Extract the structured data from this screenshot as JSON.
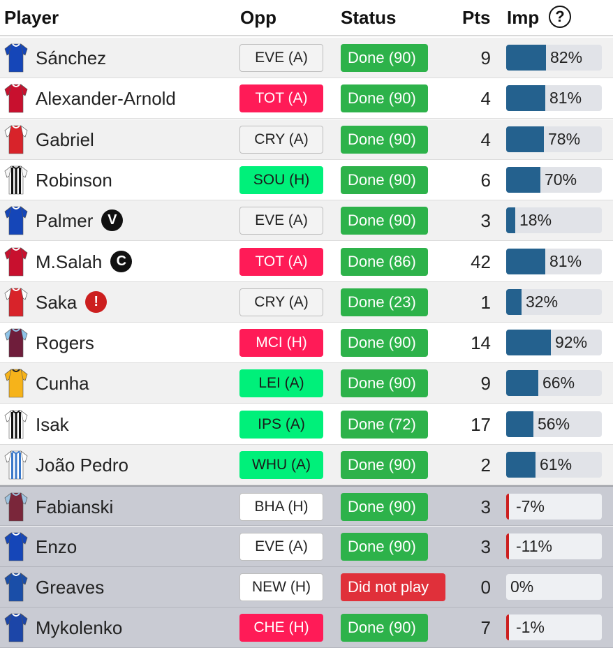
{
  "header": {
    "player": "Player",
    "opp": "Opp",
    "status": "Status",
    "pts": "Pts",
    "imp": "Imp",
    "help": "?"
  },
  "colors": {
    "done_green": "#2db24a",
    "did_not_play_red": "#e0303a",
    "fdr_easy": "#00f07a",
    "fdr_hard": "#ff1b57",
    "imp_bar": "#24618e",
    "imp_negative": "#cc1f1f"
  },
  "players": [
    {
      "name": "Sánchez",
      "shirt": "Chelsea",
      "badge": "",
      "opp": "EVE (A)",
      "difficulty": 2,
      "status": "Done (90)",
      "status_type": "done",
      "pts": "9",
      "imp": "82%",
      "imp_value": 82
    },
    {
      "name": "Alexander-Arnold",
      "shirt": "Liverpool",
      "badge": "",
      "opp": "TOT (A)",
      "difficulty": 4,
      "status": "Done (90)",
      "status_type": "done",
      "pts": "4",
      "imp": "81%",
      "imp_value": 81
    },
    {
      "name": "Gabriel",
      "shirt": "Arsenal",
      "badge": "",
      "opp": "CRY (A)",
      "difficulty": 2,
      "status": "Done (90)",
      "status_type": "done",
      "pts": "4",
      "imp": "78%",
      "imp_value": 78
    },
    {
      "name": "Robinson",
      "shirt": "Fulham",
      "badge": "",
      "opp": "SOU (H)",
      "difficulty": 3,
      "status": "Done (90)",
      "status_type": "done",
      "pts": "6",
      "imp": "70%",
      "imp_value": 70
    },
    {
      "name": "Palmer",
      "shirt": "Chelsea",
      "badge": "V",
      "opp": "EVE (A)",
      "difficulty": 2,
      "status": "Done (90)",
      "status_type": "done",
      "pts": "3",
      "imp": "18%",
      "imp_value": 18
    },
    {
      "name": "M.Salah",
      "shirt": "Liverpool",
      "badge": "C",
      "opp": "TOT (A)",
      "difficulty": 4,
      "status": "Done (86)",
      "status_type": "done",
      "pts": "42",
      "imp": "81%",
      "imp_value": 81
    },
    {
      "name": "Saka",
      "shirt": "Arsenal",
      "badge": "!",
      "opp": "CRY (A)",
      "difficulty": 2,
      "status": "Done (23)",
      "status_type": "done",
      "pts": "1",
      "imp": "32%",
      "imp_value": 32
    },
    {
      "name": "Rogers",
      "shirt": "Aston Villa",
      "badge": "",
      "opp": "MCI (H)",
      "difficulty": 4,
      "status": "Done (90)",
      "status_type": "done",
      "pts": "14",
      "imp": "92%",
      "imp_value": 92
    },
    {
      "name": "Cunha",
      "shirt": "Wolves",
      "badge": "",
      "opp": "LEI (A)",
      "difficulty": 3,
      "status": "Done (90)",
      "status_type": "done",
      "pts": "9",
      "imp": "66%",
      "imp_value": 66
    },
    {
      "name": "Isak",
      "shirt": "Newcastle",
      "badge": "",
      "opp": "IPS (A)",
      "difficulty": 3,
      "status": "Done (72)",
      "status_type": "done",
      "pts": "17",
      "imp": "56%",
      "imp_value": 56
    },
    {
      "name": "João Pedro",
      "shirt": "Brighton",
      "badge": "",
      "opp": "WHU (A)",
      "difficulty": 3,
      "status": "Done (90)",
      "status_type": "done",
      "pts": "2",
      "imp": "61%",
      "imp_value": 61
    },
    {
      "name": "Fabianski",
      "shirt": "West Ham",
      "badge": "",
      "opp": "BHA (H)",
      "difficulty": 1,
      "status": "Done (90)",
      "status_type": "done",
      "pts": "3",
      "imp": "-7%",
      "imp_value": -7
    },
    {
      "name": "Enzo",
      "shirt": "Chelsea",
      "badge": "",
      "opp": "EVE (A)",
      "difficulty": 1,
      "status": "Done (90)",
      "status_type": "done",
      "pts": "3",
      "imp": "-11%",
      "imp_value": -11
    },
    {
      "name": "Greaves",
      "shirt": "Ipswich",
      "badge": "",
      "opp": "NEW (H)",
      "difficulty": 1,
      "status": "Did not play",
      "status_type": "dnp",
      "pts": "0",
      "imp": "0%",
      "imp_value": 0
    },
    {
      "name": "Mykolenko",
      "shirt": "Everton",
      "badge": "",
      "opp": "CHE (H)",
      "difficulty": 4,
      "status": "Done (90)",
      "status_type": "done",
      "pts": "7",
      "imp": "-1%",
      "imp_value": -1
    }
  ]
}
